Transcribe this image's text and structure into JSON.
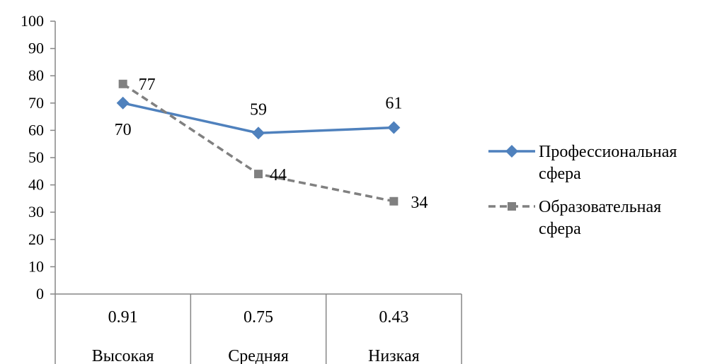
{
  "chart_data": {
    "type": "line",
    "categories": [
      {
        "top": "0.91",
        "bottom": "Высокая"
      },
      {
        "top": "0.75",
        "bottom": "Средняя"
      },
      {
        "top": "0.43",
        "bottom": "Низкая"
      }
    ],
    "series": [
      {
        "name": "Профессиональная сфера",
        "name_lines": [
          "Профессиональная",
          "сфера"
        ],
        "values": [
          70,
          59,
          61
        ],
        "labels": [
          "70",
          "59",
          "61"
        ],
        "color": "#4F81BD",
        "marker": "diamond",
        "line_style": "solid"
      },
      {
        "name": "Образовательная сфера",
        "name_lines": [
          "Образовательная",
          "сфера"
        ],
        "values": [
          77,
          44,
          34
        ],
        "labels": [
          "77",
          "44",
          "34"
        ],
        "color": "#808080",
        "marker": "square",
        "line_style": "dashed"
      }
    ],
    "yticks": [
      "0",
      "10",
      "20",
      "30",
      "40",
      "50",
      "60",
      "70",
      "80",
      "90",
      "100"
    ],
    "ylim": [
      0,
      100
    ],
    "grid": false,
    "legend": "right",
    "title": "",
    "xlabel": "",
    "ylabel": ""
  }
}
